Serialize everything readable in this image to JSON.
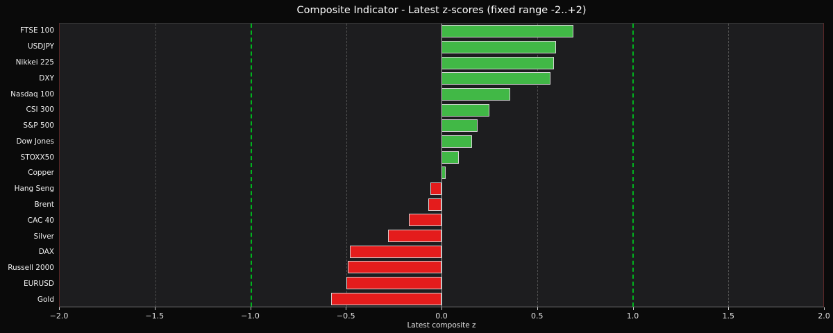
{
  "chart_data": {
    "type": "bar",
    "orientation": "horizontal",
    "title": "Composite Indicator - Latest z-scores (fixed range -2..+2)",
    "xlabel": "Latest composite z",
    "categories": [
      "FTSE 100",
      "USDJPY",
      "Nikkei 225",
      "DXY",
      "Nasdaq 100",
      "CSI 300",
      "S&P 500",
      "Dow Jones",
      "STOXX50",
      "Copper",
      "Hang Seng",
      "Brent",
      "CAC 40",
      "Silver",
      "DAX",
      "Russell 2000",
      "EURUSD",
      "Gold"
    ],
    "values": [
      0.69,
      0.6,
      0.59,
      0.57,
      0.36,
      0.25,
      0.19,
      0.16,
      0.09,
      0.02,
      -0.06,
      -0.07,
      -0.17,
      -0.28,
      -0.48,
      -0.49,
      -0.5,
      -0.58
    ],
    "xlim": [
      -2,
      2
    ],
    "xticks": [
      -2.0,
      -1.5,
      -1.0,
      -0.5,
      0.0,
      0.5,
      1.0,
      1.5,
      2.0
    ],
    "xtick_labels": [
      "−2.0",
      "−1.5",
      "−1.0",
      "−0.5",
      "0.0",
      "0.5",
      "1.0",
      "1.5",
      "2.0"
    ],
    "zero_line_x": 0,
    "threshold_lines_x": [
      -1.0,
      1.0
    ],
    "grid": "vertical-dashed",
    "legend": "none",
    "colors": {
      "positive_bar": "#41b846",
      "negative_bar": "#e41c1c",
      "bar_edge": "#d4d4d4",
      "threshold_line": "#00b41e",
      "zero_line": "#b9b9b9",
      "grid_line": "#4f4f4f",
      "plot_background": "#1d1d1f",
      "figure_background": "#0a0a0a",
      "text": "#efefef"
    }
  }
}
